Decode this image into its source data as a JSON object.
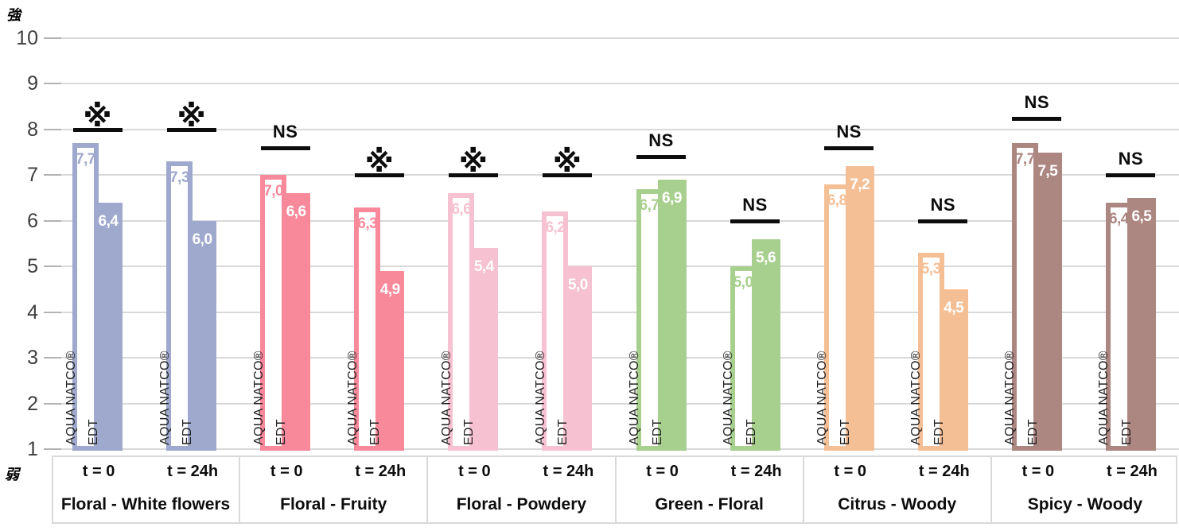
{
  "chart_data": {
    "type": "bar",
    "title": "",
    "ylabel_top": "強",
    "ylabel_bottom": "弱",
    "ylim": [
      1,
      10
    ],
    "y_ticks": [
      1,
      2,
      3,
      4,
      5,
      6,
      7,
      8,
      9,
      10
    ],
    "grid": true,
    "series": [
      "AQUA NATCO®",
      "EDT"
    ],
    "decimal_separator": ",",
    "significance_marks": {
      "significant": "※",
      "not_significant": "NS"
    },
    "groups": [
      {
        "label": "Floral - White flowers",
        "color": "#9fa9cd",
        "clusters": [
          {
            "time": "t = 0",
            "values": [
              7.7,
              6.4
            ],
            "significance": "※",
            "sig_line_value": 8.0
          },
          {
            "time": "t = 24h",
            "values": [
              7.3,
              6.0
            ],
            "significance": "※",
            "sig_line_value": 8.0
          }
        ]
      },
      {
        "label": "Floral - Fruity",
        "color": "#f7899b",
        "clusters": [
          {
            "time": "t = 0",
            "values": [
              7.0,
              6.6
            ],
            "significance": "NS",
            "sig_line_value": 7.6
          },
          {
            "time": "t = 24h",
            "values": [
              6.3,
              4.9
            ],
            "significance": "※",
            "sig_line_value": 7.0
          }
        ]
      },
      {
        "label": "Floral - Powdery",
        "color": "#f6c1d0",
        "clusters": [
          {
            "time": "t = 0",
            "values": [
              6.6,
              5.4
            ],
            "significance": "※",
            "sig_line_value": 7.0
          },
          {
            "time": "t = 24h",
            "values": [
              6.2,
              5.0
            ],
            "significance": "※",
            "sig_line_value": 7.0
          }
        ]
      },
      {
        "label": "Green - Floral",
        "color": "#a7cf8e",
        "clusters": [
          {
            "time": "t = 0",
            "values": [
              6.7,
              6.9
            ],
            "significance": "NS",
            "sig_line_value": 7.4
          },
          {
            "time": "t = 24h",
            "values": [
              5.0,
              5.6
            ],
            "significance": "NS",
            "sig_line_value": 6.0
          }
        ]
      },
      {
        "label": "Citrus - Woody",
        "color": "#f5bf96",
        "clusters": [
          {
            "time": "t = 0",
            "values": [
              6.8,
              7.2
            ],
            "significance": "NS",
            "sig_line_value": 7.6
          },
          {
            "time": "t = 24h",
            "values": [
              5.3,
              4.5
            ],
            "significance": "NS",
            "sig_line_value": 6.0
          }
        ]
      },
      {
        "label": "Spicy - Woody",
        "color": "#ac8680",
        "clusters": [
          {
            "time": "t = 0",
            "values": [
              7.7,
              7.5
            ],
            "significance": "NS",
            "sig_line_value": 8.25
          },
          {
            "time": "t = 24h",
            "values": [
              6.4,
              6.5
            ],
            "significance": "NS",
            "sig_line_value": 7.0
          }
        ]
      }
    ]
  },
  "colors": {
    "gridline": "#d9d9d9",
    "y_tick": "#b3b3b3",
    "axis_text": "#3d3d3d",
    "marker_black": "#0d0d0d",
    "edt_value_label": "#ffffff",
    "vertical_label_text": "#1f1f1f",
    "xaxis_box_border": "#d9d9d9"
  }
}
